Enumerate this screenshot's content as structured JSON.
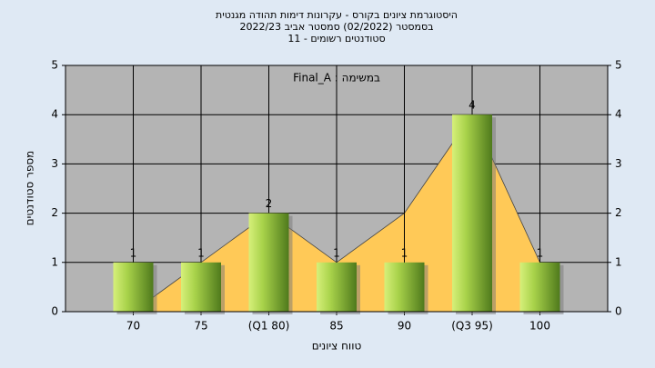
{
  "chart_data": {
    "type": "bar",
    "title": "היסטוגרמת ציונים בקורס - עקרונות דימות תהודה מגנטית",
    "subtitle": "בסמסטר  (02/2022)  סמסטר אביב 2022/23",
    "subtitle2": "סטודנטים רשומים - 11",
    "annotation": "Final_A : במשימה",
    "x_label": "טווח ציונים",
    "y_label": "מספר סטודנטים",
    "categories": [
      "70",
      "75",
      "(Q1 80)",
      "85",
      "90",
      "(Q3 95)",
      "100"
    ],
    "series": [
      {
        "color": "#9acd42",
        "values": [
          1,
          1,
          2,
          1,
          1,
          4,
          1
        ]
      },
      {
        "color": "#ffc957",
        "values": [
          0,
          1,
          2,
          1,
          2,
          4,
          1
        ]
      }
    ],
    "ylim": [
      0,
      5
    ],
    "yticks": [
      0,
      1,
      2,
      3,
      4,
      5
    ],
    "grid": true
  }
}
